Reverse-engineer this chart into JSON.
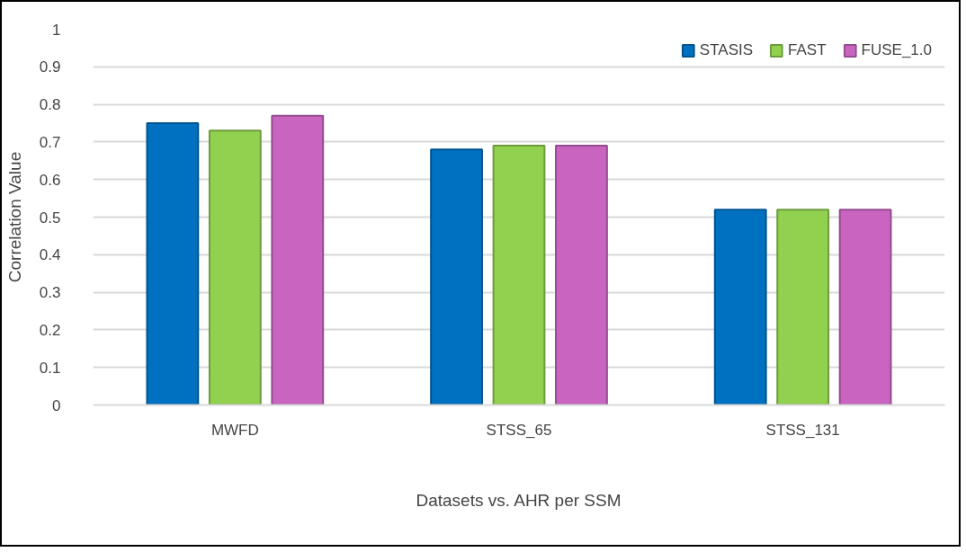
{
  "chart_data": {
    "type": "bar",
    "xlabel": "Datasets vs. AHR per SSM",
    "ylabel": "Correlation Value",
    "categories": [
      "MWFD",
      "STSS_65",
      "STSS_131"
    ],
    "series": [
      {
        "name": "STASIS",
        "color": "#0070c0",
        "values": [
          0.75,
          0.68,
          0.52
        ]
      },
      {
        "name": "FAST",
        "color": "#92d050",
        "values": [
          0.73,
          0.69,
          0.52
        ]
      },
      {
        "name": "FUSE_1.0",
        "color": "#c965c0",
        "values": [
          0.77,
          0.69,
          0.52
        ]
      }
    ],
    "ylim": [
      0,
      1
    ],
    "yticks": [
      0,
      0.1,
      0.2,
      0.3,
      0.4,
      0.5,
      0.6,
      0.7,
      0.8,
      0.9,
      1
    ],
    "grid": "y",
    "legend": "top right"
  }
}
